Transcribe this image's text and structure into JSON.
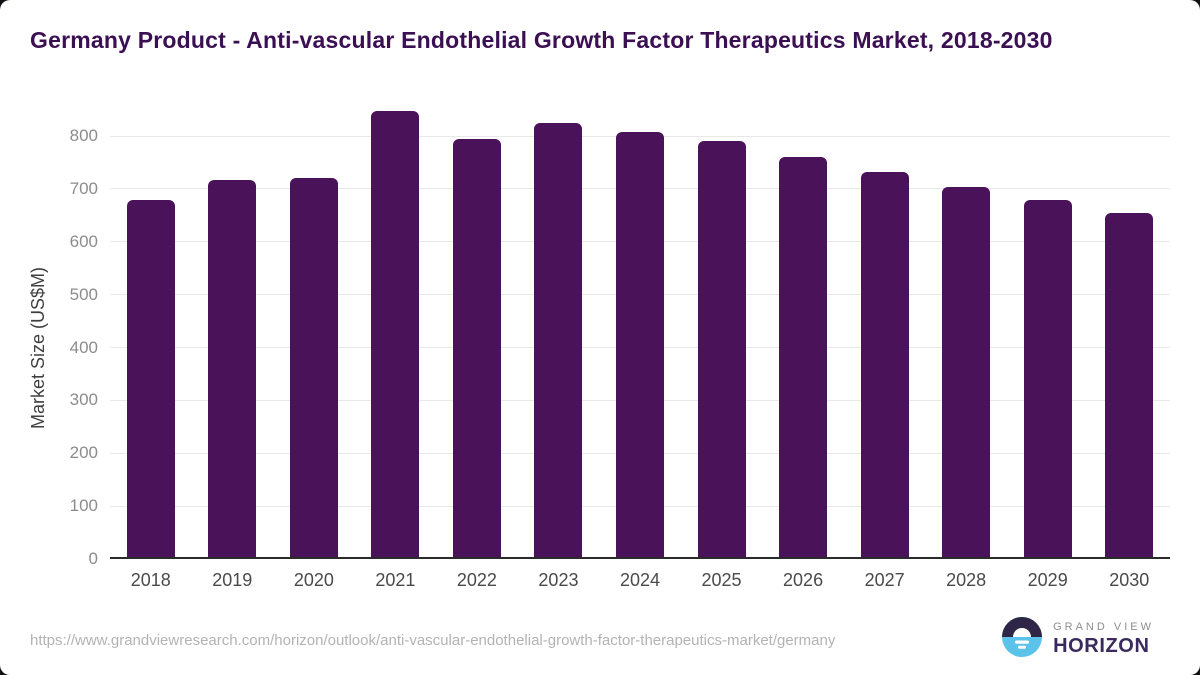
{
  "page": {
    "source_url": "https://www.grandviewresearch.com/horizon/outlook/anti-vascular-endothelial-growth-factor-therapeutics-market/germany",
    "brand": {
      "line1": "GRAND VIEW",
      "line2": "HORIZON",
      "icon": "horizon-sun-icon",
      "icon_colors": {
        "top": "#2e2547",
        "bottom": "#5bc2ea",
        "cutout": "#ffffff"
      }
    }
  },
  "chart_data": {
    "type": "bar",
    "title": "Germany Product - Anti-vascular Endothelial Growth Factor Therapeutics Market, 2018-2030",
    "categories": [
      "2018",
      "2019",
      "2020",
      "2021",
      "2022",
      "2023",
      "2024",
      "2025",
      "2026",
      "2027",
      "2028",
      "2029",
      "2030"
    ],
    "values": [
      679,
      717,
      721,
      848,
      795,
      824,
      808,
      790,
      761,
      732,
      703,
      679,
      654
    ],
    "xlabel": "",
    "ylabel": "Market Size (US$M)",
    "y_ticks": [
      0,
      100,
      200,
      300,
      400,
      500,
      600,
      700,
      800
    ],
    "ylim": [
      0,
      870
    ],
    "grid": true,
    "legend_position": "none",
    "colors": {
      "bar": "#4a1259",
      "title": "#3b1053",
      "gridline": "#e8e8e8",
      "baseline": "#2b2b2b",
      "y_tick_text": "#8c8c8c",
      "x_tick_text": "#4a4a4a",
      "url_text": "#b3b3b3"
    }
  }
}
